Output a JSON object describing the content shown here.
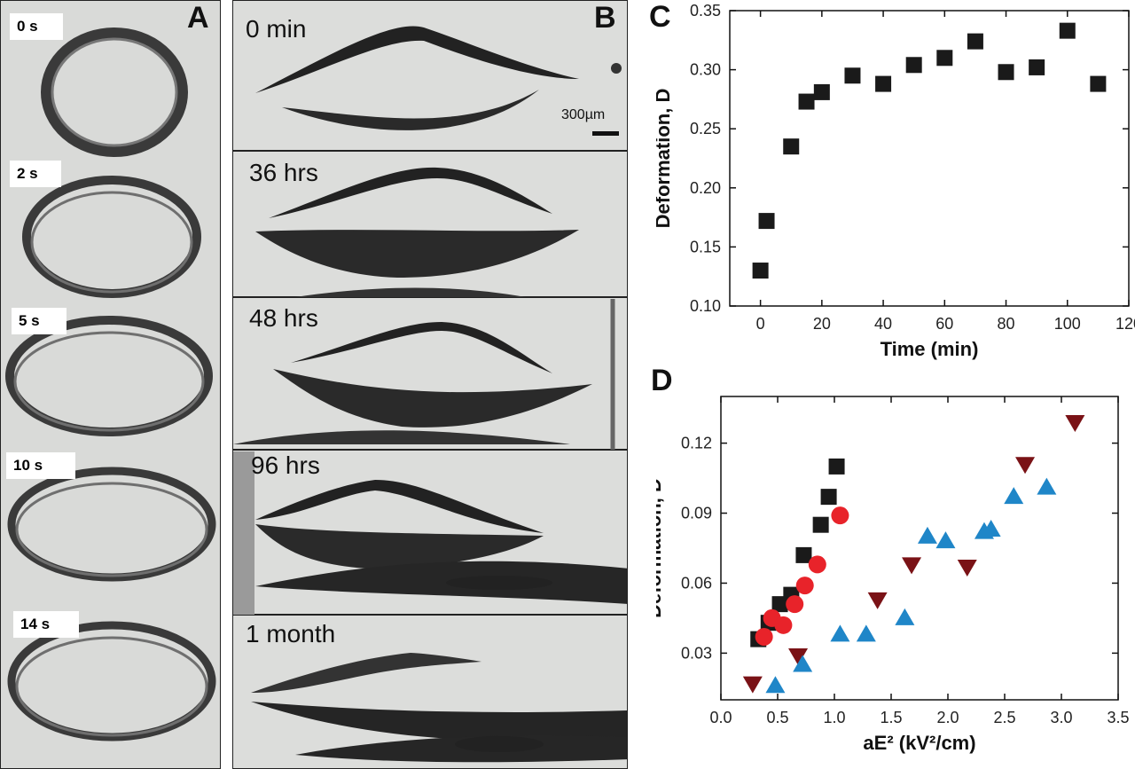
{
  "panel_a": {
    "letter": "A",
    "frames": [
      {
        "label": "0 s"
      },
      {
        "label": "2 s"
      },
      {
        "label": "5 s"
      },
      {
        "label": "10 s"
      },
      {
        "label": "14 s"
      }
    ]
  },
  "panel_b": {
    "letter": "B",
    "frames": [
      {
        "label": "0 min"
      },
      {
        "label": "36 hrs"
      },
      {
        "label": "48 hrs"
      },
      {
        "label": "96 hrs"
      },
      {
        "label": "1 month"
      }
    ],
    "scale_bar": "300µm"
  },
  "colors": {
    "black": "#1a1a1a",
    "red": "#e8232a",
    "darkred": "#7a1216",
    "blue": "#1f86c8"
  },
  "chart_data": [
    {
      "panel": "C",
      "type": "scatter",
      "title": "",
      "xlabel": "Time (min)",
      "ylabel": "Deformation, D",
      "xlim": [
        -10,
        120
      ],
      "ylim": [
        0.1,
        0.35
      ],
      "xticks": [
        "0",
        "20",
        "40",
        "60",
        "80",
        "100",
        "120"
      ],
      "yticks": [
        "0.10",
        "0.15",
        "0.20",
        "0.25",
        "0.30",
        "0.35"
      ],
      "series": [
        {
          "marker": "square",
          "color": "#1a1a1a",
          "points": [
            [
              0,
              0.13
            ],
            [
              2,
              0.172
            ],
            [
              10,
              0.235
            ],
            [
              15,
              0.273
            ],
            [
              20,
              0.281
            ],
            [
              30,
              0.295
            ],
            [
              40,
              0.288
            ],
            [
              50,
              0.304
            ],
            [
              60,
              0.31
            ],
            [
              70,
              0.324
            ],
            [
              80,
              0.298
            ],
            [
              90,
              0.302
            ],
            [
              100,
              0.333
            ],
            [
              110,
              0.288
            ]
          ]
        }
      ]
    },
    {
      "panel": "D",
      "type": "scatter",
      "title": "",
      "xlabel": "aE² (kV²/cm)",
      "ylabel": "Deformation, D",
      "xlim": [
        0,
        3.5
      ],
      "ylim": [
        0.01,
        0.14
      ],
      "xticks": [
        "0.0",
        "0.5",
        "1.0",
        "1.5",
        "2.0",
        "2.5",
        "3.0",
        "3.5"
      ],
      "yticks": [
        "0.03",
        "0.06",
        "0.09",
        "0.12"
      ],
      "series": [
        {
          "marker": "square",
          "color": "#1a1a1a",
          "points": [
            [
              0.33,
              0.036
            ],
            [
              0.42,
              0.043
            ],
            [
              0.52,
              0.051
            ],
            [
              0.62,
              0.055
            ],
            [
              0.73,
              0.072
            ],
            [
              0.88,
              0.085
            ],
            [
              0.95,
              0.097
            ],
            [
              1.02,
              0.11
            ]
          ]
        },
        {
          "marker": "circle",
          "color": "#e8232a",
          "points": [
            [
              0.38,
              0.037
            ],
            [
              0.45,
              0.045
            ],
            [
              0.55,
              0.042
            ],
            [
              0.65,
              0.051
            ],
            [
              0.74,
              0.059
            ],
            [
              0.85,
              0.068
            ],
            [
              1.05,
              0.089
            ]
          ]
        },
        {
          "marker": "triangle-down",
          "color": "#7a1216",
          "points": [
            [
              0.28,
              0.017
            ],
            [
              0.68,
              0.029
            ],
            [
              1.38,
              0.053
            ],
            [
              1.68,
              0.068
            ],
            [
              2.17,
              0.067
            ],
            [
              2.68,
              0.111
            ],
            [
              3.12,
              0.129
            ]
          ]
        },
        {
          "marker": "triangle-up",
          "color": "#1f86c8",
          "points": [
            [
              0.48,
              0.016
            ],
            [
              0.72,
              0.025
            ],
            [
              1.05,
              0.038
            ],
            [
              1.28,
              0.038
            ],
            [
              1.62,
              0.045
            ],
            [
              1.82,
              0.08
            ],
            [
              1.98,
              0.078
            ],
            [
              2.32,
              0.082
            ],
            [
              2.38,
              0.083
            ],
            [
              2.58,
              0.097
            ],
            [
              2.87,
              0.101
            ]
          ]
        }
      ]
    }
  ]
}
